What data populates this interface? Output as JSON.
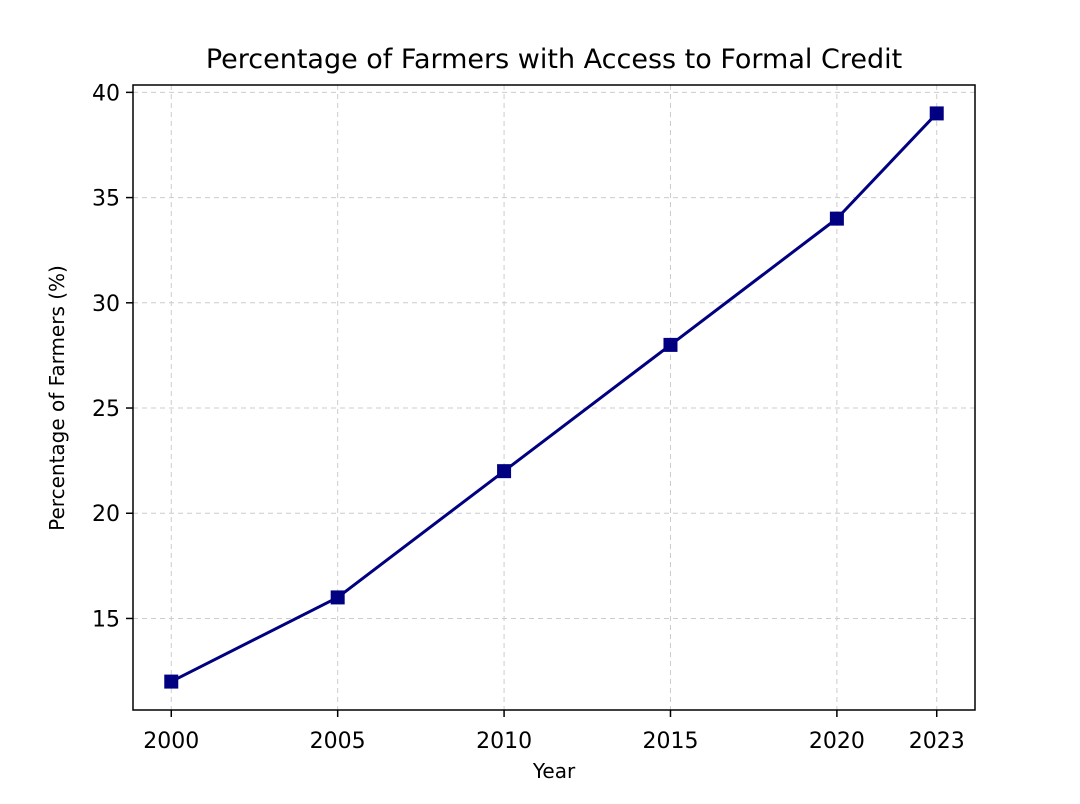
{
  "chart_data": {
    "type": "line",
    "title": "Percentage of Farmers with Access to Formal Credit",
    "xlabel": "Year",
    "ylabel": "Percentage of Farmers (%)",
    "x": [
      2000,
      2005,
      2010,
      2015,
      2020,
      2023
    ],
    "x_ticks": [
      "2000",
      "2005",
      "2010",
      "2015",
      "2020",
      "2023"
    ],
    "y_ticks": [
      "15",
      "20",
      "25",
      "30",
      "35",
      "40"
    ],
    "xlim": [
      1998.85,
      2024.15
    ],
    "ylim": [
      10.65,
      40.35
    ],
    "series": [
      {
        "values": [
          12,
          16,
          22,
          28,
          34,
          39
        ],
        "color": "#000080",
        "marker": "square"
      }
    ],
    "grid": true
  }
}
